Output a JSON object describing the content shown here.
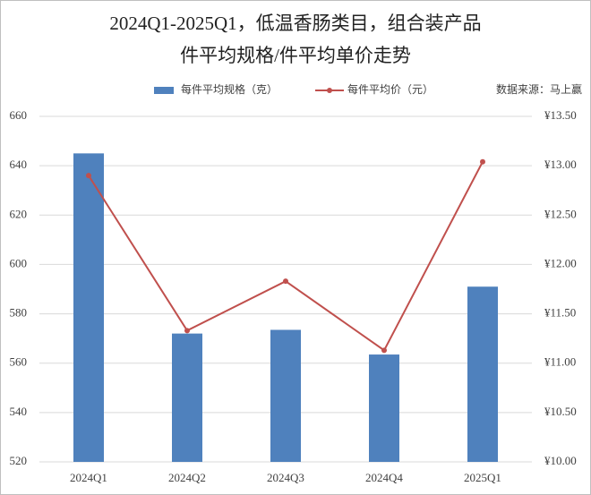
{
  "chart_data": {
    "type": "bar_line",
    "title_lines": [
      "2024Q1-2025Q1，低温香肠类目，组合装产品",
      "件平均规格/件平均单价走势"
    ],
    "source": "数据来源：马上赢",
    "categories": [
      "2024Q1",
      "2024Q2",
      "2024Q3",
      "2024Q4",
      "2025Q1"
    ],
    "series": [
      {
        "name": "每件平均规格（克）",
        "color": "#4f81bd",
        "type": "bar",
        "values": [
          645,
          572,
          573.5,
          563.5,
          591
        ]
      },
      {
        "name": "每件平均价（元）",
        "color": "#c0504d",
        "type": "line",
        "axis": "y2",
        "values": [
          12.9,
          11.33,
          11.83,
          11.13,
          13.04
        ]
      }
    ],
    "ylim": [
      520,
      660
    ],
    "yticks": [
      520,
      540,
      560,
      580,
      600,
      620,
      640,
      660
    ],
    "y2lim": [
      10,
      13.5
    ],
    "y2ticks": [
      {
        "value": 10,
        "label": "¥10.00"
      },
      {
        "value": 10.5,
        "label": "¥10.50"
      },
      {
        "value": 11,
        "label": "¥11.00"
      },
      {
        "value": 11.5,
        "label": "¥11.50"
      },
      {
        "value": 12,
        "label": "¥12.00"
      },
      {
        "value": 12.5,
        "label": "¥12.50"
      },
      {
        "value": 13,
        "label": "¥13.00"
      },
      {
        "value": 13.5,
        "label": "¥13.50"
      }
    ],
    "grid": true
  }
}
